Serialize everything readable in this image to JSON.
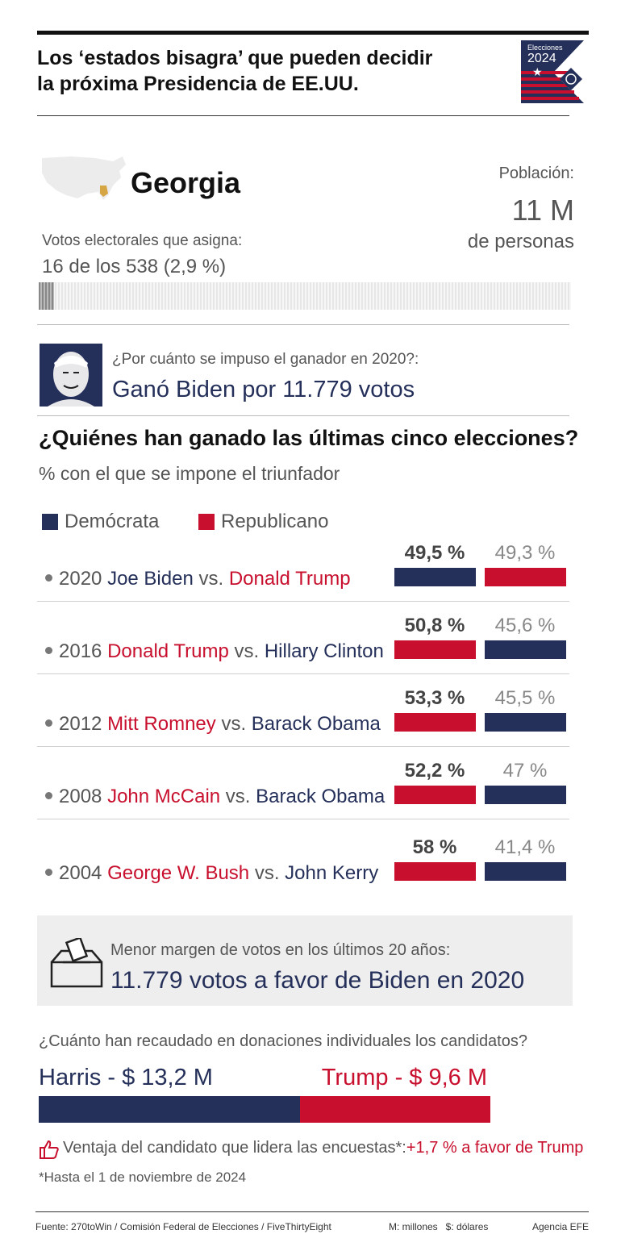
{
  "header": {
    "title_line1": "Los ‘estados bisagra’ que pueden decidir",
    "title_line2": "la próxima Presidencia de EE.UU.",
    "logo_top": "Elecciones",
    "logo_year": "2024"
  },
  "state": {
    "name": "Georgia",
    "electoral_label": "Votos electorales que asigna:",
    "electoral_value": "16 de los 538 (2,9 %)",
    "electoral_share": 0.029,
    "population_label": "Población:",
    "population_value": "11 M",
    "population_unit": "de personas"
  },
  "winner2020": {
    "question": "¿Por cuánto se impuso el ganador en 2020?:",
    "answer": "Ganó Biden por 11.779 votos"
  },
  "elections": {
    "heading": "¿Quiénes han ganado las últimas cinco elecciones?",
    "subheading": "% con el que se impone el triunfador",
    "legend_dem": "Demócrata",
    "legend_rep": "Republicano",
    "rows": [
      {
        "year": "2020",
        "winner": "Joe Biden",
        "vs": "vs.",
        "loser": "Donald Trump",
        "winner_party": "dem",
        "winner_pct": "49,5 %",
        "loser_pct": "49,3 %"
      },
      {
        "year": "2016",
        "winner": "Donald Trump",
        "vs": "vs.",
        "loser": "Hillary Clinton",
        "winner_party": "rep",
        "winner_pct": "50,8 %",
        "loser_pct": "45,6 %"
      },
      {
        "year": "2012",
        "winner": "Mitt Romney",
        "vs": "vs.",
        "loser": "Barack Obama",
        "winner_party": "rep",
        "winner_pct": "53,3 %",
        "loser_pct": "45,5 %"
      },
      {
        "year": "2008",
        "winner": "John McCain",
        "vs": "vs.",
        "loser": "Barack Obama",
        "winner_party": "rep",
        "winner_pct": "52,2 %",
        "loser_pct": "47 %"
      },
      {
        "year": "2004",
        "winner": "George W. Bush",
        "vs": "vs.",
        "loser": "John Kerry",
        "winner_party": "rep",
        "winner_pct": "58 %",
        "loser_pct": "41,4 %"
      }
    ]
  },
  "margin": {
    "label": "Menor margen de votos en los últimos 20 años:",
    "value": "11.779 votos a favor de Biden en 2020"
  },
  "donations": {
    "question": "¿Cuánto han recaudado en donaciones individuales los candidatos?",
    "harris_label": "Harris - $ 13,2 M",
    "trump_label": "Trump - $ 9,6 M",
    "harris_value": 13.2,
    "trump_value": 9.6
  },
  "polls": {
    "label": "Ventaja del candidato que lidera las encuestas*:",
    "value": "+1,7 % a favor de Trump",
    "footnote": "*Hasta el 1 de noviembre de 2024"
  },
  "footer": {
    "source": "Fuente: 270toWin / Comisión Federal de Elecciones / FiveThirtyEight",
    "units": "M: millones   $: dólares",
    "agency": "Agencia EFE"
  },
  "colors": {
    "dem": "#25305a",
    "rep": "#c8102e"
  }
}
